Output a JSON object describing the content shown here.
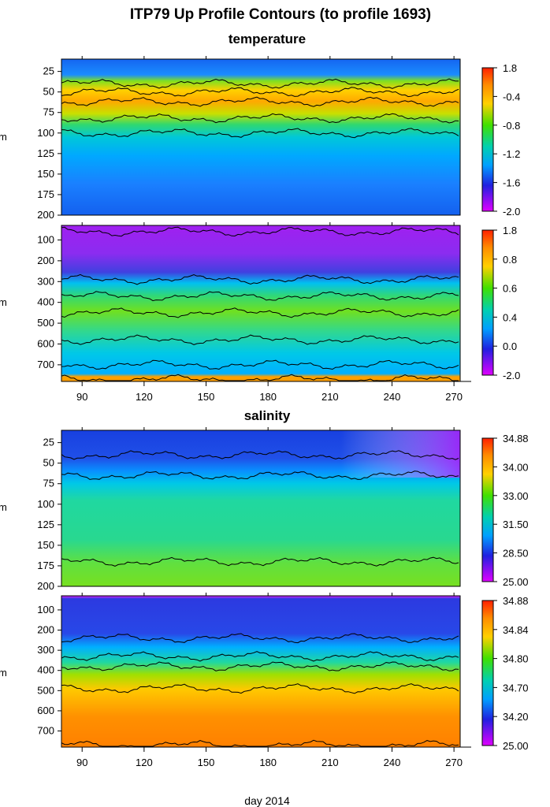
{
  "chart_data": {
    "type": "heatmap",
    "title": "ITP79 Up Profile Contours (to profile 1693)",
    "xlabel": "day 2014",
    "x_ticks": [
      90,
      120,
      150,
      180,
      210,
      240,
      270
    ],
    "xlim": [
      80,
      273
    ],
    "y_unit_label": "m",
    "sections": [
      {
        "name": "temperature",
        "panels": [
          {
            "id": "temp-upper",
            "ylim": [
              200,
              10
            ],
            "y_ticks": [
              25,
              50,
              75,
              100,
              125,
              150,
              175,
              200
            ],
            "colorbar": {
              "labels": [
                "1.8",
                "-0.4",
                "-0.8",
                "-1.2",
                "-1.6",
                "-2.0"
              ],
              "colors": [
                "#ff3000",
                "#ffa000",
                "#00d840",
                "#00b0ff",
                "#2020d0",
                "#e000ff"
              ]
            },
            "contour_depths": [
              40,
              50,
              62,
              82,
              100
            ]
          },
          {
            "id": "temp-lower",
            "ylim": [
              780,
              30
            ],
            "y_ticks": [
              100,
              200,
              300,
              400,
              500,
              600,
              700
            ],
            "colorbar": {
              "labels": [
                "1.8",
                "0.8",
                "0.6",
                "0.4",
                "0.0",
                "-2.0"
              ],
              "colors": [
                "#ff3000",
                "#ffa000",
                "#00d840",
                "#00b0ff",
                "#2020d0",
                "#e000ff"
              ]
            },
            "contour_depths": [
              60,
              290,
              370,
              450,
              580,
              700,
              770
            ]
          }
        ]
      },
      {
        "name": "salinity",
        "panels": [
          {
            "id": "sal-upper",
            "ylim": [
              200,
              10
            ],
            "y_ticks": [
              25,
              50,
              75,
              100,
              125,
              150,
              175,
              200
            ],
            "colorbar": {
              "labels": [
                "34.88",
                "34.00",
                "33.00",
                "31.50",
                "28.50",
                "25.00"
              ],
              "colors": [
                "#ff3000",
                "#ffa000",
                "#00d840",
                "#00b0ff",
                "#2020d0",
                "#e000ff"
              ]
            },
            "contour_depths": [
              40,
              65,
              170
            ]
          },
          {
            "id": "sal-lower",
            "ylim": [
              780,
              30
            ],
            "y_ticks": [
              100,
              200,
              300,
              400,
              500,
              600,
              700
            ],
            "colorbar": {
              "labels": [
                "34.88",
                "34.84",
                "34.80",
                "34.70",
                "34.20",
                "25.00"
              ],
              "colors": [
                "#ff3000",
                "#ffa000",
                "#00d840",
                "#00b0ff",
                "#2020d0",
                "#e000ff"
              ]
            },
            "contour_depths": [
              240,
              330,
              380,
              490,
              770
            ]
          }
        ]
      }
    ]
  }
}
